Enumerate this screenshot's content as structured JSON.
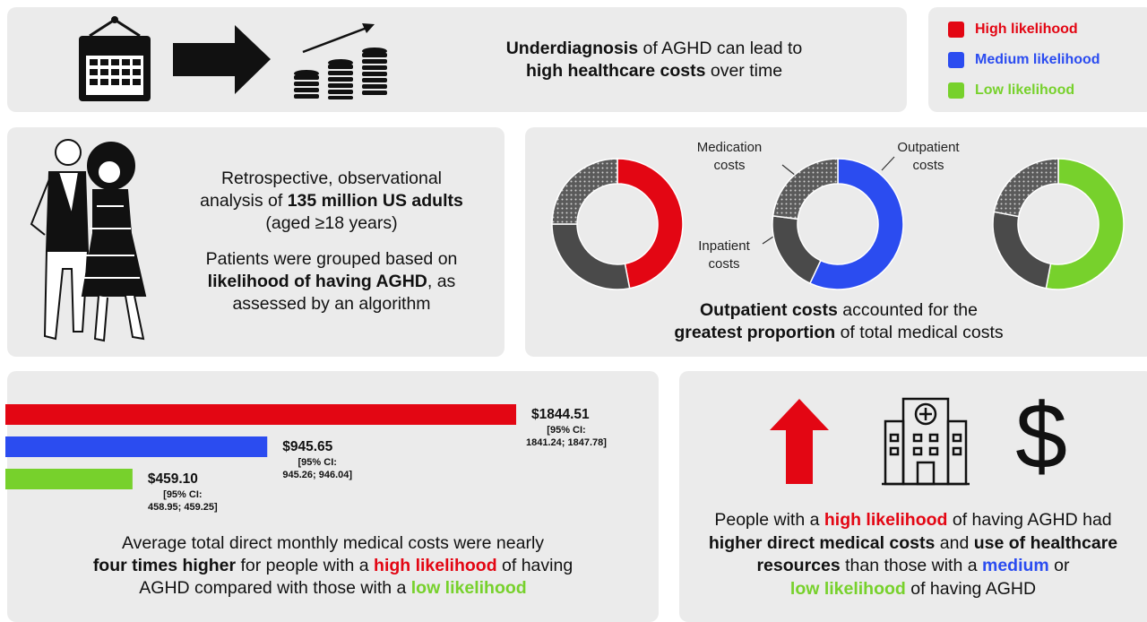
{
  "headline": [
    [
      {
        "text": "Underdiagnosis",
        "bold": true
      },
      {
        "text": " of AGHD can lead to"
      }
    ],
    [
      {
        "text": "high healthcare costs",
        "bold": true
      },
      {
        "text": " over time"
      }
    ]
  ],
  "study": {
    "paragraph1": [
      [
        {
          "text": "Retrospective, observational"
        }
      ],
      [
        {
          "text": "analysis of "
        },
        {
          "text": "135 million US adults",
          "bold": true
        }
      ],
      [
        {
          "text": "(aged ≥18 years)"
        }
      ]
    ],
    "paragraph2": [
      [
        {
          "text": "Patients were grouped based on"
        }
      ],
      [
        {
          "text": "likelihood of having AGHD",
          "bold": true
        },
        {
          "text": ", as"
        }
      ],
      [
        {
          "text": "assessed by an algorithm"
        }
      ]
    ]
  },
  "chart_data": [
    {
      "type": "donut",
      "categories": [
        "Outpatient costs",
        "Inpatient costs",
        "Medication costs"
      ],
      "series": [
        {
          "name": "High likelihood",
          "color": "#e30613",
          "values": [
            47,
            28,
            25
          ]
        },
        {
          "name": "Medium likelihood",
          "color": "#2b4cf0",
          "values": [
            57,
            20,
            23
          ]
        },
        {
          "name": "Low likelihood",
          "color": "#77d12c",
          "values": [
            53,
            25,
            22
          ]
        }
      ],
      "caption": [
        [
          {
            "text": "Outpatient costs",
            "bold": true
          },
          {
            "text": " accounted for the"
          }
        ],
        [
          {
            "text": "greatest proportion",
            "bold": true
          },
          {
            "text": " of total medical costs"
          }
        ]
      ]
    },
    {
      "type": "bar",
      "orientation": "horizontal",
      "values": [
        1844.51,
        945.65,
        459.1
      ],
      "value_labels": [
        "$1844.51",
        "$945.65",
        "$459.10"
      ],
      "colors": [
        "#e30613",
        "#2b4cf0",
        "#77d12c"
      ],
      "ci_label": "[95% CI:",
      "ci_ranges": [
        "1841.24; 1847.78]",
        "945.26; 946.04]",
        "458.95; 459.25]"
      ],
      "caption": [
        [
          {
            "text": "Average total direct monthly medical costs were nearly"
          }
        ],
        [
          {
            "text": "four times higher",
            "bold": true
          },
          {
            "text": " for people with a "
          },
          {
            "text": "high likelihood",
            "bold": true,
            "color": "#e30613"
          },
          {
            "text": " of having"
          }
        ],
        [
          {
            "text": "AGHD compared with those with a "
          },
          {
            "text": "low likelihood",
            "bold": true,
            "color": "#77d12c"
          }
        ]
      ]
    }
  ],
  "conclusion": [
    [
      {
        "text": "People with a "
      },
      {
        "text": "high likelihood",
        "bold": true,
        "color": "#e30613"
      },
      {
        "text": " of having AGHD had"
      }
    ],
    [
      {
        "text": "higher direct medical costs",
        "bold": true
      },
      {
        "text": " and "
      },
      {
        "text": "use of healthcare",
        "bold": true
      }
    ],
    [
      {
        "text": "resources",
        "bold": true
      },
      {
        "text": " than those with a "
      },
      {
        "text": "medium",
        "bold": true,
        "color": "#2b4cf0"
      },
      {
        "text": " or"
      }
    ],
    [
      {
        "text": "low likelihood",
        "bold": true,
        "color": "#77d12c"
      },
      {
        "text": " of having AGHD"
      }
    ]
  ]
}
